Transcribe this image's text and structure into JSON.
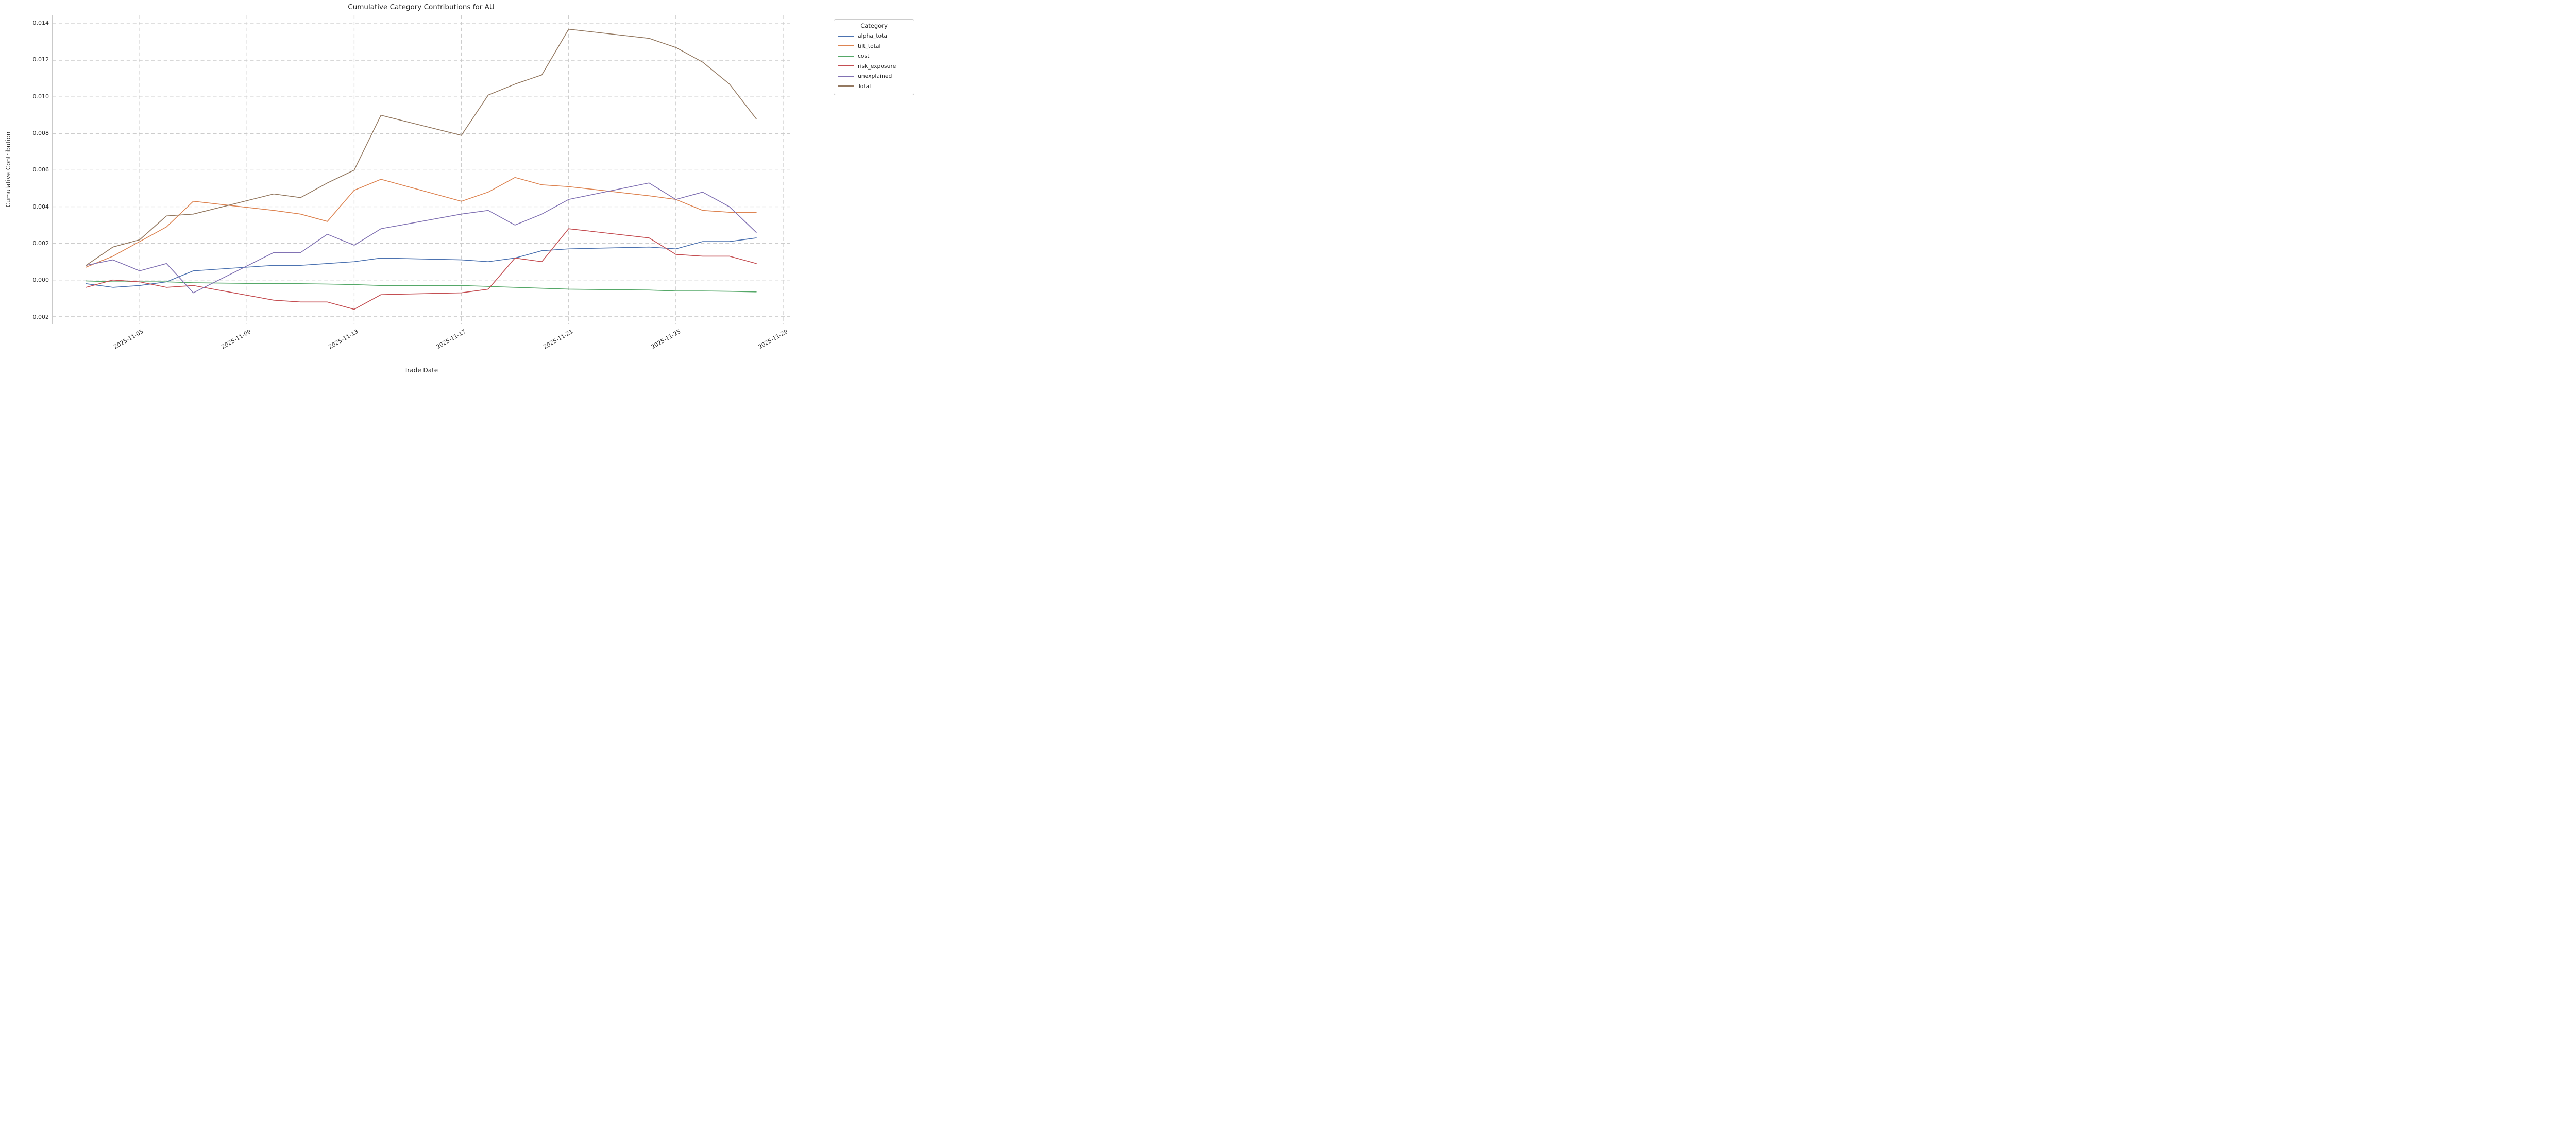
{
  "figure": {
    "title": "Cumulative Category Contributions for AU",
    "xlabel": "Trade Date",
    "ylabel": "Cumulative Contribution",
    "background_color": "#ffffff"
  },
  "legend": {
    "title": "Category"
  },
  "style": {
    "grid_color": "#cccccc",
    "spine_color": "#c9c9c9",
    "text_color": "#262626",
    "line_width": 1.6
  },
  "chart_data": {
    "type": "line",
    "title": "Cumulative Category Contributions for AU",
    "xlabel": "Trade Date",
    "ylabel": "Cumulative Contribution",
    "grid": true,
    "legend_position": "upper right, outside axes",
    "dates": [
      "2025-11-03",
      "2025-11-04",
      "2025-11-05",
      "2025-11-06",
      "2025-11-07",
      "2025-11-10",
      "2025-11-11",
      "2025-11-12",
      "2025-11-13",
      "2025-11-14",
      "2025-11-17",
      "2025-11-18",
      "2025-11-19",
      "2025-11-20",
      "2025-11-21",
      "2025-11-24",
      "2025-11-25",
      "2025-11-26",
      "2025-11-27",
      "2025-11-28"
    ],
    "x_offsets": [
      0,
      1,
      2,
      3,
      4,
      7,
      8,
      9,
      10,
      11,
      14,
      15,
      16,
      17,
      18,
      21,
      22,
      23,
      24,
      25
    ],
    "xlim_offsets": [
      -1.25,
      26.25
    ],
    "ylim": [
      -0.0024,
      0.01445
    ],
    "x_ticks": [
      {
        "offset": 2,
        "label": "2025-11-05"
      },
      {
        "offset": 6,
        "label": "2025-11-09"
      },
      {
        "offset": 10,
        "label": "2025-11-13"
      },
      {
        "offset": 14,
        "label": "2025-11-17"
      },
      {
        "offset": 18,
        "label": "2025-11-21"
      },
      {
        "offset": 22,
        "label": "2025-11-25"
      },
      {
        "offset": 26,
        "label": "2025-11-29"
      }
    ],
    "y_ticks": [
      {
        "value": -0.002,
        "label": "−0.002"
      },
      {
        "value": 0.0,
        "label": "0.000"
      },
      {
        "value": 0.002,
        "label": "0.002"
      },
      {
        "value": 0.004,
        "label": "0.004"
      },
      {
        "value": 0.006,
        "label": "0.006"
      },
      {
        "value": 0.008,
        "label": "0.008"
      },
      {
        "value": 0.01,
        "label": "0.010"
      },
      {
        "value": 0.012,
        "label": "0.012"
      },
      {
        "value": 0.014,
        "label": "0.014"
      }
    ],
    "series": [
      {
        "name": "alpha_total",
        "color": "#4C72B0",
        "values": [
          -0.0002,
          -0.0004,
          -0.0003,
          -0.0001,
          0.0005,
          0.0008,
          0.0008,
          0.0009,
          0.001,
          0.0012,
          0.0011,
          0.001,
          0.0012,
          0.0016,
          0.0017,
          0.0018,
          0.0017,
          0.0021,
          0.0021,
          0.0023
        ]
      },
      {
        "name": "tilt_total",
        "color": "#DD8452",
        "values": [
          0.0007,
          0.0013,
          0.0021,
          0.0029,
          0.0043,
          0.0038,
          0.0036,
          0.0032,
          0.0049,
          0.0055,
          0.0043,
          0.0048,
          0.0056,
          0.0052,
          0.0051,
          0.0046,
          0.0044,
          0.0038,
          0.0037,
          0.0037
        ]
      },
      {
        "name": "cost",
        "color": "#55A868",
        "values": [
          -5e-05,
          -0.0001,
          -0.0001,
          -0.0001,
          -0.00015,
          -0.0002,
          -0.0002,
          -0.00022,
          -0.00025,
          -0.0003,
          -0.0003,
          -0.00035,
          -0.0004,
          -0.00045,
          -0.0005,
          -0.00055,
          -0.0006,
          -0.0006,
          -0.00062,
          -0.00065
        ]
      },
      {
        "name": "risk_exposure",
        "color": "#C44E52",
        "values": [
          -0.0004,
          0.0,
          -0.0001,
          -0.0004,
          -0.0003,
          -0.0011,
          -0.0012,
          -0.0012,
          -0.0016,
          -0.0008,
          -0.0007,
          -0.0005,
          0.0012,
          0.001,
          0.0028,
          0.0023,
          0.0014,
          0.0013,
          0.0013,
          0.0009
        ]
      },
      {
        "name": "unexplained",
        "color": "#8172B3",
        "values": [
          0.0008,
          0.0011,
          0.0005,
          0.0009,
          -0.0007,
          0.0015,
          0.0015,
          0.0025,
          0.0019,
          0.0028,
          0.0036,
          0.0038,
          0.003,
          0.0036,
          0.0044,
          0.0053,
          0.0044,
          0.0048,
          0.004,
          0.0026
        ]
      },
      {
        "name": "Total",
        "color": "#937860",
        "values": [
          0.0008,
          0.0018,
          0.0022,
          0.0035,
          0.0036,
          0.0047,
          0.0045,
          0.0053,
          0.006,
          0.009,
          0.0079,
          0.0101,
          0.0107,
          0.0112,
          0.0137,
          0.0132,
          0.0127,
          0.0119,
          0.0107,
          0.0088
        ]
      }
    ]
  }
}
